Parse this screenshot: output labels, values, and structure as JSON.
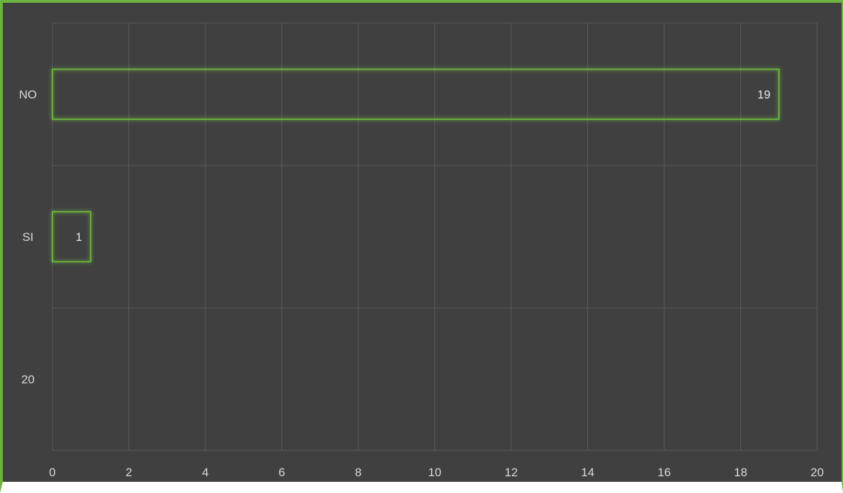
{
  "chart_data": {
    "type": "bar",
    "orientation": "horizontal",
    "categories": [
      "NO",
      "SI",
      "20"
    ],
    "values": [
      19,
      1,
      null
    ],
    "data_labels": [
      "19",
      "1",
      ""
    ],
    "xlim": [
      0,
      20
    ],
    "x_ticks": [
      "0",
      "2",
      "4",
      "6",
      "8",
      "10",
      "12",
      "14",
      "16",
      "18",
      "20"
    ],
    "grid": true,
    "title": "",
    "xlabel": "",
    "ylabel": "",
    "colors": {
      "background": "#404040",
      "bar_outline": "#6db33f",
      "grid": "#5a5a5a",
      "text": "#d9d9d9"
    }
  }
}
